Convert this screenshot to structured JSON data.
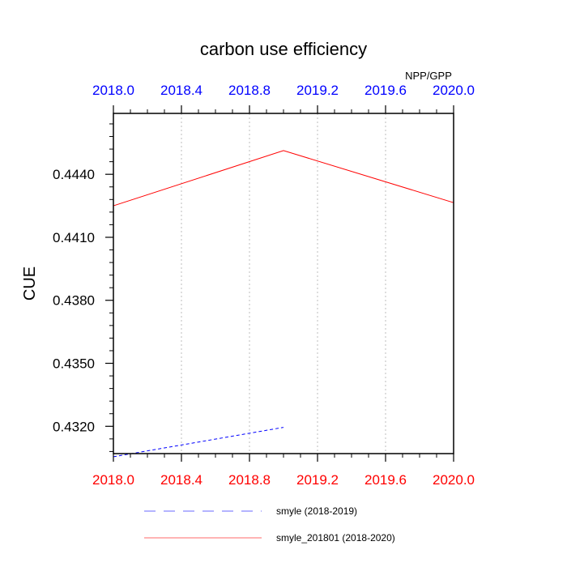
{
  "chart_data": {
    "type": "line",
    "title": "carbon use efficiency",
    "subtitle": "NPP/GPP",
    "xlabel": "",
    "ylabel": "CUE",
    "xlim": [
      2018.0,
      2020.0
    ],
    "ylim": [
      0.4307,
      0.4469
    ],
    "x_ticks": [
      "2018.0",
      "2018.4",
      "2018.8",
      "2019.2",
      "2019.6",
      "2020.0"
    ],
    "x_tick_values": [
      2018.0,
      2018.4,
      2018.8,
      2019.2,
      2019.6,
      2020.0
    ],
    "y_ticks": [
      "0.4320",
      "0.4350",
      "0.4380",
      "0.4410",
      "0.4440"
    ],
    "y_tick_values": [
      0.432,
      0.435,
      0.438,
      0.441,
      0.444
    ],
    "grid": "vertical dotted",
    "legend_position": "bottom",
    "top_axis_color": "#0000ff",
    "bottom_axis_color": "#ff0000",
    "series": [
      {
        "name": "smyle (2018-2019)",
        "color": "#0000ff",
        "dash": "dashed",
        "x": [
          2018.0,
          2019.0
        ],
        "y": [
          0.43055,
          0.43195
        ]
      },
      {
        "name": "smyle_201801 (2018-2020)",
        "color": "#ff0000",
        "dash": "solid",
        "x": [
          2018.0,
          2019.0,
          2020.0
        ],
        "y": [
          0.4425,
          0.44513,
          0.44265
        ]
      }
    ]
  }
}
